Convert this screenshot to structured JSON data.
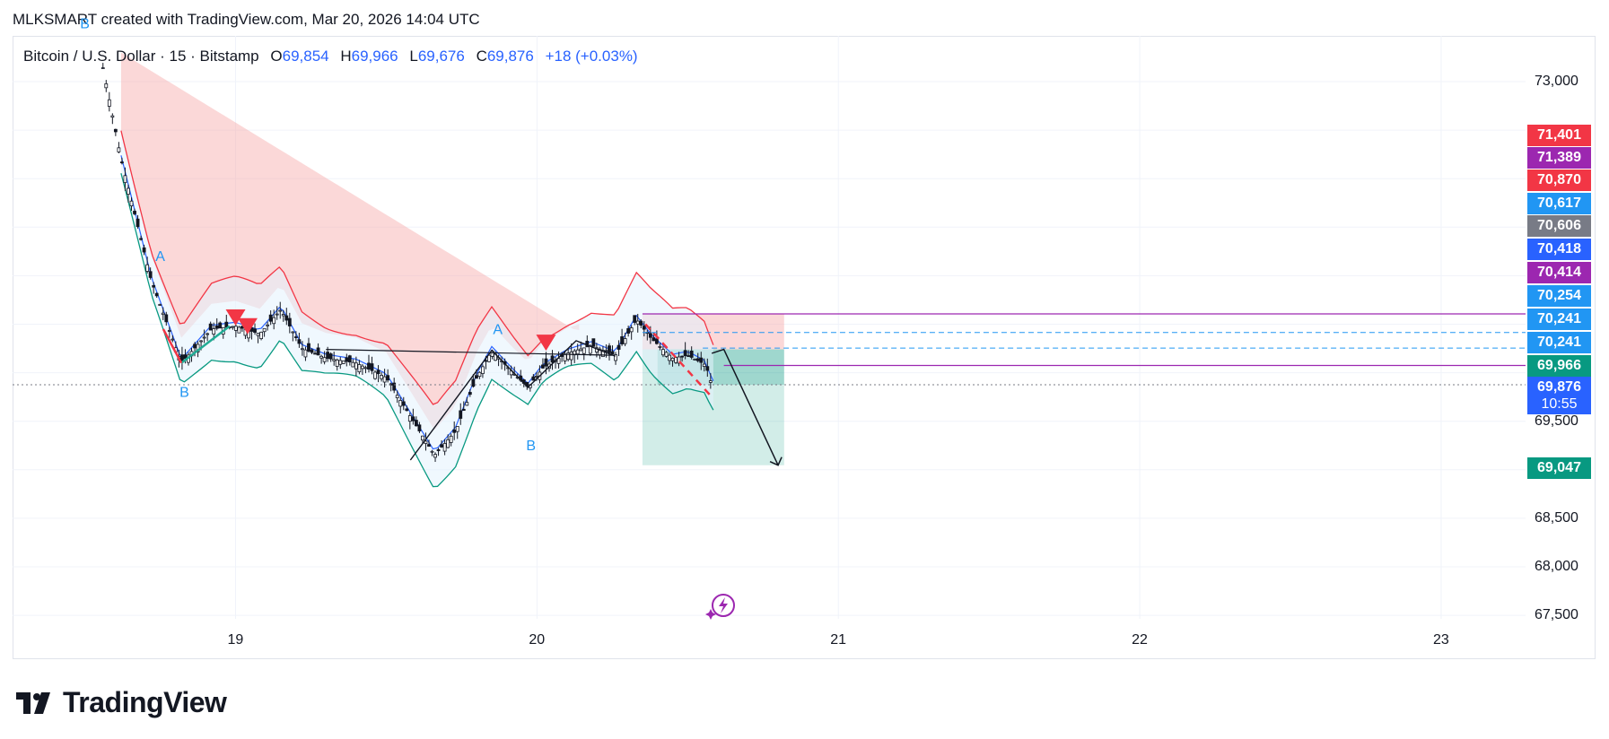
{
  "header": {
    "caption": "MLKSMART created with TradingView.com, Mar 20, 2026 14:04 UTC"
  },
  "legend": {
    "symbol": "Bitcoin / U.S. Dollar · 15 · Bitstamp",
    "open_key": "O",
    "open": "69,854",
    "high_key": "H",
    "high": "69,966",
    "low_key": "L",
    "low": "69,676",
    "close_key": "C",
    "close": "69,876",
    "change": "+18 (+0.03%)"
  },
  "chart_data": {
    "type": "candlestick",
    "symbol": "Bitcoin / U.S. Dollar",
    "interval": "15",
    "exchange": "Bitstamp",
    "x_ticks": [
      "19",
      "20",
      "21",
      "22",
      "23"
    ],
    "y_ticks": [
      "73,000",
      "69,500",
      "68,500",
      "68,000",
      "67,500"
    ],
    "ylim": [
      67300,
      73600
    ],
    "price_path": [
      {
        "t": 18.55,
        "p": 73300
      },
      {
        "t": 18.62,
        "p": 72200
      },
      {
        "t": 18.72,
        "p": 70950
      },
      {
        "t": 18.82,
        "p": 70100
      },
      {
        "t": 18.92,
        "p": 70450
      },
      {
        "t": 19.0,
        "p": 70480
      },
      {
        "t": 19.08,
        "p": 70400
      },
      {
        "t": 19.15,
        "p": 70650
      },
      {
        "t": 19.22,
        "p": 70250
      },
      {
        "t": 19.3,
        "p": 70150
      },
      {
        "t": 19.4,
        "p": 70100
      },
      {
        "t": 19.5,
        "p": 69950
      },
      {
        "t": 19.58,
        "p": 69550
      },
      {
        "t": 19.66,
        "p": 69150
      },
      {
        "t": 19.73,
        "p": 69400
      },
      {
        "t": 19.8,
        "p": 69950
      },
      {
        "t": 19.85,
        "p": 70230
      },
      {
        "t": 19.92,
        "p": 70000
      },
      {
        "t": 19.97,
        "p": 69850
      },
      {
        "t": 20.02,
        "p": 70050
      },
      {
        "t": 20.1,
        "p": 70200
      },
      {
        "t": 20.18,
        "p": 70280
      },
      {
        "t": 20.26,
        "p": 70180
      },
      {
        "t": 20.33,
        "p": 70550
      },
      {
        "t": 20.38,
        "p": 70350
      },
      {
        "t": 20.45,
        "p": 70150
      },
      {
        "t": 20.5,
        "p": 70180
      },
      {
        "t": 20.56,
        "p": 70080
      },
      {
        "t": 20.58,
        "p": 69876
      }
    ],
    "annotations": [
      {
        "label": "B",
        "t": 18.5,
        "p": 73550
      },
      {
        "label": "A",
        "t": 18.75,
        "p": 71150
      },
      {
        "label": "B",
        "t": 18.83,
        "p": 69750
      },
      {
        "label": "A",
        "t": 19.87,
        "p": 70400
      },
      {
        "label": "B",
        "t": 19.98,
        "p": 69200
      }
    ],
    "projection": {
      "from_t": 20.62,
      "from_p": 70241,
      "to_t": 20.8,
      "to_p": 69047
    },
    "price_labels": [
      {
        "value": "71,401",
        "color": "#f23645"
      },
      {
        "value": "71,389",
        "color": "#9c27b0"
      },
      {
        "value": "70,870",
        "color": "#f23645"
      },
      {
        "value": "70,617",
        "color": "#2196f3"
      },
      {
        "value": "70,606",
        "color": "#787b86"
      },
      {
        "value": "70,418",
        "color": "#2962ff"
      },
      {
        "value": "70,414",
        "color": "#9c27b0"
      },
      {
        "value": "70,254",
        "color": "#2196f3"
      },
      {
        "value": "70,241",
        "color": "#2196f3"
      },
      {
        "value": "70,241",
        "color": "#2196f3"
      },
      {
        "value": "69,966",
        "color": "#089981"
      },
      {
        "value": "69,876",
        "color": "#2962ff"
      },
      {
        "value": "69,047",
        "color": "#089981"
      }
    ],
    "countdown": "10:55",
    "grid": true
  },
  "brand": {
    "name": "TradingView"
  }
}
